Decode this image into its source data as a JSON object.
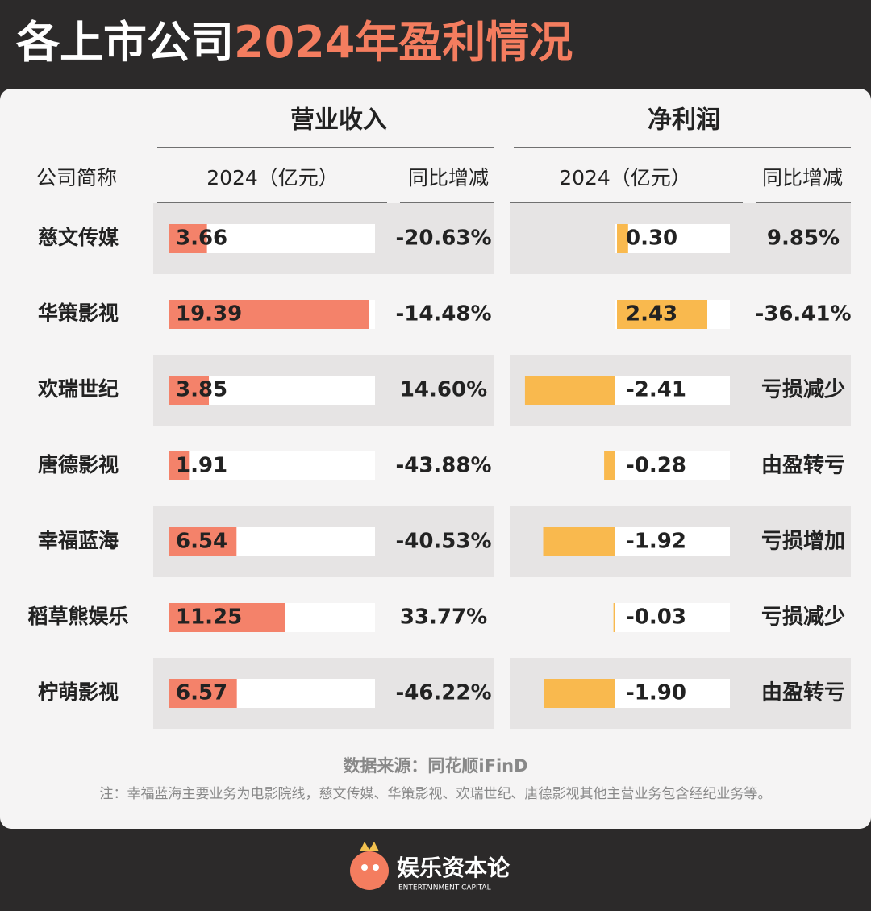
{
  "title": {
    "lead": "各上市公司",
    "accent": "2024年盈利情况"
  },
  "table": {
    "group_headers": [
      "营业收入",
      "净利润"
    ],
    "columns": [
      "公司简称",
      "2024（亿元）",
      "同比增减",
      "2024（亿元）",
      "同比增减"
    ],
    "rows": [
      {
        "company": "慈文传媒",
        "revenue": 3.66,
        "revenue_change": "-20.63%",
        "profit": 0.3,
        "profit_label": "0.30",
        "profit_change": "9.85%"
      },
      {
        "company": "华策影视",
        "revenue": 19.39,
        "revenue_change": "-14.48%",
        "profit": 2.43,
        "profit_change": "-36.41%"
      },
      {
        "company": "欢瑞世纪",
        "revenue": 3.85,
        "revenue_change": "14.60%",
        "profit": -2.41,
        "profit_change": "亏损减少"
      },
      {
        "company": "唐德影视",
        "revenue": 1.91,
        "revenue_change": "-43.88%",
        "profit": -0.28,
        "profit_change": "由盈转亏"
      },
      {
        "company": "幸福蓝海",
        "revenue": 6.54,
        "revenue_change": "-40.53%",
        "profit": -1.92,
        "profit_change": "亏损增加"
      },
      {
        "company": "稻草熊娱乐",
        "revenue": 11.25,
        "revenue_change": "33.77%",
        "profit": -0.03,
        "profit_change": "亏损减少"
      },
      {
        "company": "柠萌影视",
        "revenue": 6.57,
        "revenue_change": "-46.22%",
        "profit": -1.9,
        "profit_label": "-1.90",
        "profit_change": "由盈转亏"
      }
    ]
  },
  "source": "数据来源：同花顺iFinD",
  "note": "注：幸福蓝海主要业务为电影院线，慈文传媒、华策影视、欢瑞世纪、唐德影视其他主营业务包含经纪业务等。",
  "brand": {
    "name": "娱乐资本论",
    "sub": "ENTERTAINMENT CAPITAL"
  }
}
